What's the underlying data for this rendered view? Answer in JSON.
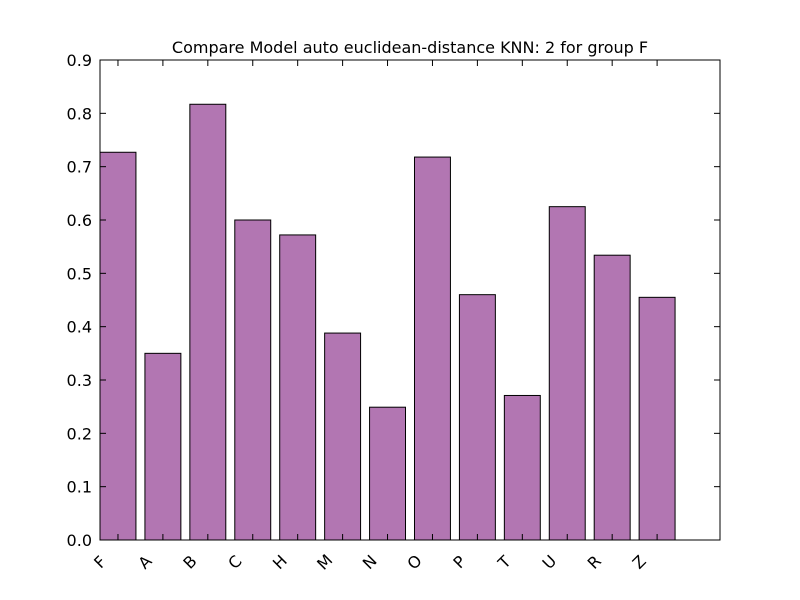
{
  "chart_data": {
    "type": "bar",
    "title": "Compare Model auto euclidean-distance KNN: 2 for group F",
    "xlabel": "",
    "ylabel": "",
    "categories": [
      "F",
      "A",
      "B",
      "C",
      "H",
      "M",
      "N",
      "O",
      "P",
      "T",
      "U",
      "R",
      "Z"
    ],
    "values": [
      0.727,
      0.35,
      0.817,
      0.6,
      0.572,
      0.388,
      0.249,
      0.718,
      0.46,
      0.271,
      0.625,
      0.534,
      0.455
    ],
    "ylim": [
      0,
      0.9
    ],
    "yticks": [
      "0.0",
      "0.1",
      "0.2",
      "0.3",
      "0.4",
      "0.5",
      "0.6",
      "0.7",
      "0.8",
      "0.9"
    ],
    "bar_color": "#b276b2",
    "edge_color": "#000000",
    "grid": false,
    "legend": "none"
  }
}
